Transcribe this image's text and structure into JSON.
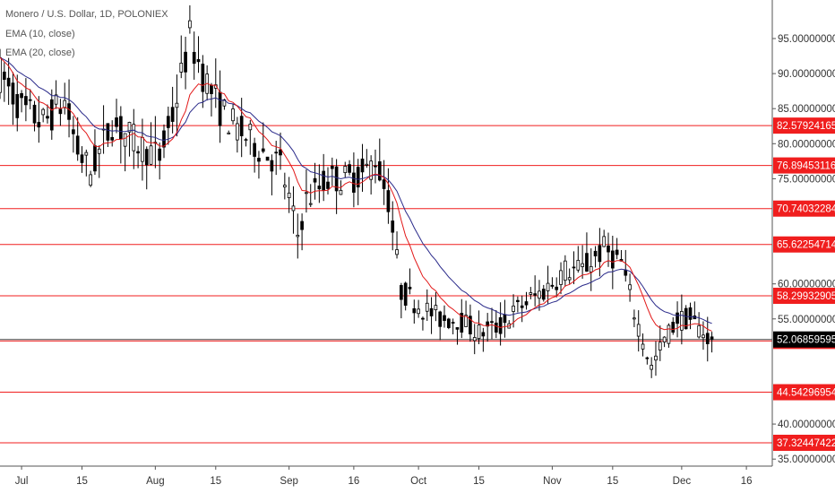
{
  "header": {
    "symbol_line": "Monero / U.S. Dollar, 1D, POLONIEX",
    "ema_fast": "EMA (10, close)",
    "ema_slow": "EMA (20, close)"
  },
  "colors": {
    "background": "#ffffff",
    "candle_up_body": "#ffffff",
    "candle_down_body": "#000000",
    "candle_wick": "#000000",
    "ema_fast": "#e21818",
    "ema_slow": "#2a2a8a",
    "level_line": "#f01e1e",
    "level_label_bg": "#f01e1e",
    "level_label_text": "#ffffff",
    "price_label_bg": "#000000",
    "price_label_text": "#ffffff",
    "axis_text": "#333333",
    "axis_line": "#555555"
  },
  "chart_data": {
    "type": "candlestick",
    "title": "Monero / U.S. Dollar, 1D, POLONIEX",
    "y_axis": {
      "ticks": [
        "95.00000000",
        "90.00000000",
        "85.00000000",
        "80.00000000",
        "75.00000000",
        "60.00000000",
        "55.00000000",
        "40.00000000",
        "35.00000000"
      ],
      "ylim": [
        34,
        100.5
      ]
    },
    "x_axis": {
      "ticks": [
        "Jul",
        "15",
        "Aug",
        "15",
        "Sep",
        "16",
        "Oct",
        "15",
        "Nov",
        "15",
        "Dec",
        "16"
      ],
      "start_date": "2018-06-26",
      "end_date": "2018-12-22"
    },
    "horizontal_levels": [
      "82.57924165",
      "76.89453116",
      "70.74032284",
      "65.62254714",
      "58.29932905",
      "51.86296161",
      "44.54296954",
      "37.32447422"
    ],
    "last_price": "52.06859595",
    "ema_fast_name": "EMA (10, close)",
    "ema_slow_name": "EMA (20, close)",
    "close_series": [
      [
        "2018-06-26",
        90
      ],
      [
        "2018-07-01",
        85
      ],
      [
        "2018-07-06",
        83
      ],
      [
        "2018-07-11",
        86
      ],
      [
        "2018-07-14",
        79
      ],
      [
        "2018-07-17",
        76
      ],
      [
        "2018-07-22",
        83
      ],
      [
        "2018-07-28",
        80
      ],
      [
        "2018-08-02",
        78
      ],
      [
        "2018-08-05",
        84
      ],
      [
        "2018-08-09",
        95
      ],
      [
        "2018-08-12",
        90
      ],
      [
        "2018-08-16",
        85
      ],
      [
        "2018-08-20",
        82
      ],
      [
        "2018-08-24",
        80
      ],
      [
        "2018-08-30",
        77
      ],
      [
        "2018-09-03",
        67
      ],
      [
        "2018-09-05",
        72
      ],
      [
        "2018-09-10",
        75
      ],
      [
        "2018-09-15",
        75
      ],
      [
        "2018-09-19",
        76
      ],
      [
        "2018-09-21",
        78
      ],
      [
        "2018-09-24",
        72
      ],
      [
        "2018-09-27",
        59
      ],
      [
        "2018-10-01",
        57
      ],
      [
        "2018-10-06",
        55
      ],
      [
        "2018-10-10",
        55
      ],
      [
        "2018-10-15",
        53
      ],
      [
        "2018-10-20",
        54
      ],
      [
        "2018-10-25",
        57
      ],
      [
        "2018-10-30",
        59
      ],
      [
        "2018-11-04",
        62
      ],
      [
        "2018-11-08",
        62
      ],
      [
        "2018-11-13",
        65
      ],
      [
        "2018-11-17",
        63
      ],
      [
        "2018-11-20",
        56
      ],
      [
        "2018-11-24",
        48
      ],
      [
        "2018-11-27",
        52
      ],
      [
        "2018-11-30",
        55
      ],
      [
        "2018-12-03",
        55
      ],
      [
        "2018-12-06",
        53
      ],
      [
        "2018-12-08",
        52.07
      ]
    ]
  }
}
